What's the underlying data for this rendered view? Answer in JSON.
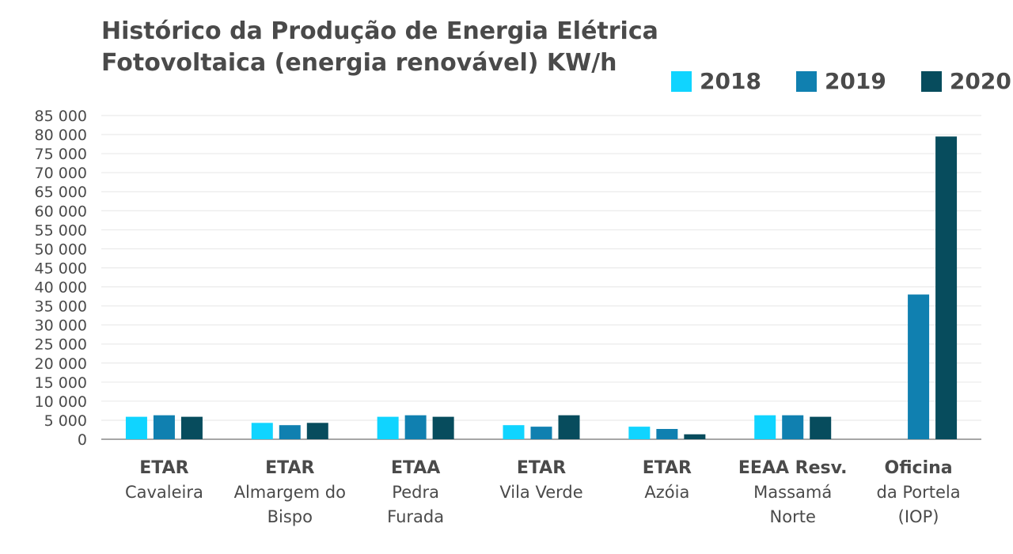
{
  "chart_data": {
    "type": "bar",
    "title_lines": [
      "Histórico da Produção de Energia Elétrica",
      "Fotovoltaica (energia renovável) KW/h"
    ],
    "categories": [
      [
        "ETAR",
        "Cavaleira"
      ],
      [
        "ETAR",
        "Almargem do",
        "Bispo"
      ],
      [
        "ETAA",
        "Pedra",
        "Furada"
      ],
      [
        "ETAR",
        "Vila Verde"
      ],
      [
        "ETAR",
        "Azóia"
      ],
      [
        "EEAA Resv.",
        "Massamá",
        "Norte"
      ],
      [
        "Oficina",
        "da Portela",
        "(IOP)"
      ]
    ],
    "series": [
      {
        "name": "2018",
        "color": "#10d4ff",
        "values": [
          5900,
          4300,
          5900,
          3700,
          3300,
          6300,
          0
        ]
      },
      {
        "name": "2019",
        "color": "#1080b0",
        "values": [
          6300,
          3700,
          6300,
          3300,
          2700,
          6300,
          38000
        ]
      },
      {
        "name": "2020",
        "color": "#074c5d",
        "values": [
          5900,
          4300,
          5900,
          6300,
          1300,
          5900,
          79500
        ]
      }
    ],
    "yticks": [
      "0",
      "5 000",
      "10 000",
      "15 000",
      "20 000",
      "25 000",
      "30 000",
      "35 000",
      "40 000",
      "45 000",
      "50 000",
      "55 000",
      "60 000",
      "65 000",
      "70 000",
      "75 000",
      "80 000",
      "85 000"
    ],
    "ylim": [
      0,
      85000
    ],
    "grid": true,
    "legend_position": "top-right"
  }
}
